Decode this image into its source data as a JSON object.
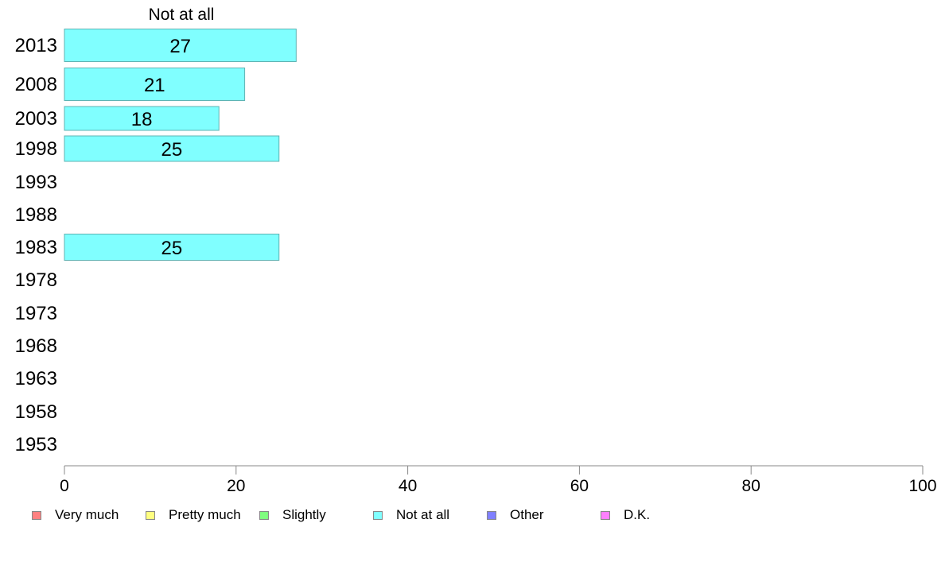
{
  "chart_data": {
    "type": "bar",
    "orientation": "horizontal",
    "title": "Not at all",
    "categories": [
      "2013",
      "2008",
      "2003",
      "1998",
      "1993",
      "1988",
      "1983",
      "1978",
      "1973",
      "1968",
      "1963",
      "1958",
      "1953"
    ],
    "series": [
      {
        "name": "Not at all",
        "color": "#80ffff",
        "values": [
          27,
          21,
          18,
          25,
          null,
          null,
          25,
          null,
          null,
          null,
          null,
          null,
          null
        ]
      }
    ],
    "data_labels": [
      "27",
      "21",
      "18",
      "25",
      "",
      "",
      "25",
      "",
      "",
      "",
      "",
      "",
      ""
    ],
    "xlim": [
      0,
      100
    ],
    "xticks": [
      "0",
      "20",
      "40",
      "60",
      "80",
      "100"
    ],
    "xlabel": "",
    "ylabel": "",
    "grid": false,
    "legend_position": "bottom",
    "legend": [
      {
        "label": "Very much",
        "color": "#ff8080"
      },
      {
        "label": "Pretty much",
        "color": "#ffff80"
      },
      {
        "label": "Slightly",
        "color": "#80ff80"
      },
      {
        "label": "Not at all",
        "color": "#80ffff"
      },
      {
        "label": "Other",
        "color": "#8080ff"
      },
      {
        "label": "D.K.",
        "color": "#ff80ff"
      }
    ]
  }
}
